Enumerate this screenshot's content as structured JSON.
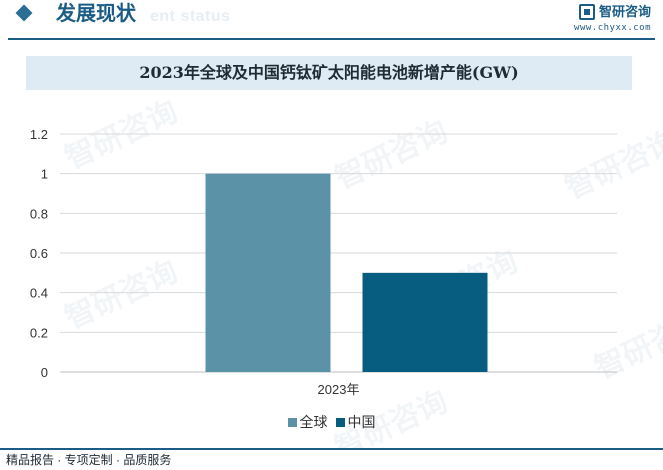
{
  "header": {
    "title": "发展现状",
    "subtitle": "ent status",
    "brand_name": "智研咨询",
    "brand_url": "www.chyxx.com"
  },
  "footer": {
    "text": "精品报告 · 专项定制 · 品质服务"
  },
  "watermark": "智研咨询",
  "colors": {
    "brand": "#1b5c86",
    "title_band": "#deebf4"
  },
  "chart_data": {
    "type": "bar",
    "title": "2023年全球及中国钙钛矿太阳能电池新增产能(GW)",
    "categories": [
      "2023年"
    ],
    "series": [
      {
        "name": "全球",
        "values": [
          1.0
        ],
        "color": "#5b92a8"
      },
      {
        "name": "中国",
        "values": [
          0.5
        ],
        "color": "#065d80"
      }
    ],
    "ylim": [
      0,
      1.2
    ],
    "yticks": [
      "0",
      "0.2",
      "0.4",
      "0.6",
      "0.8",
      "1",
      "1.2"
    ],
    "ytick_values": [
      0,
      0.2,
      0.4,
      0.6,
      0.8,
      1.0,
      1.2
    ],
    "grid": true,
    "legend_position": "bottom"
  }
}
